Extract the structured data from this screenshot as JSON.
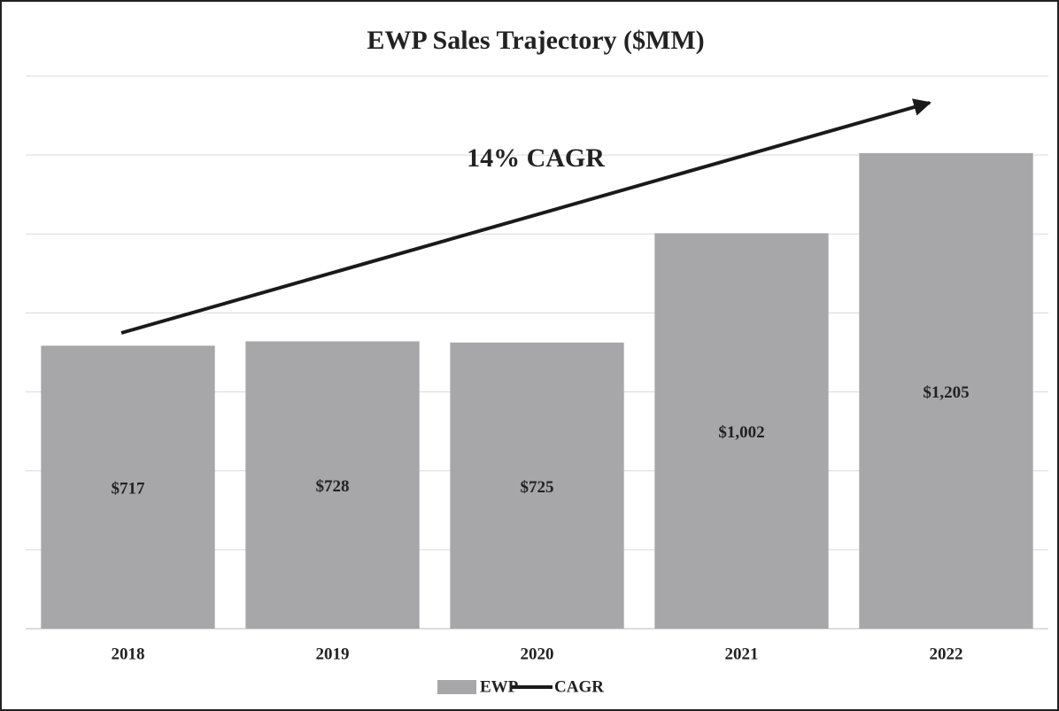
{
  "chart_data": {
    "type": "bar",
    "title": "EWP Sales Trajectory ($MM)",
    "categories": [
      "2018",
      "2019",
      "2020",
      "2021",
      "2022"
    ],
    "series": [
      {
        "name": "EWP",
        "color": "#a7a7aa",
        "values": [
          717,
          728,
          725,
          1002,
          1205
        ],
        "value_labels": [
          "$717",
          "$728",
          "$725",
          "$1,002",
          "$1,205"
        ]
      }
    ],
    "trend": {
      "name": "CAGR",
      "label": "14% CAGR",
      "color": "#1a1a1a"
    },
    "ylim": [
      0,
      1400
    ],
    "yticks": [
      0,
      200,
      400,
      600,
      800,
      1000,
      1200,
      1400
    ],
    "grid": true
  }
}
